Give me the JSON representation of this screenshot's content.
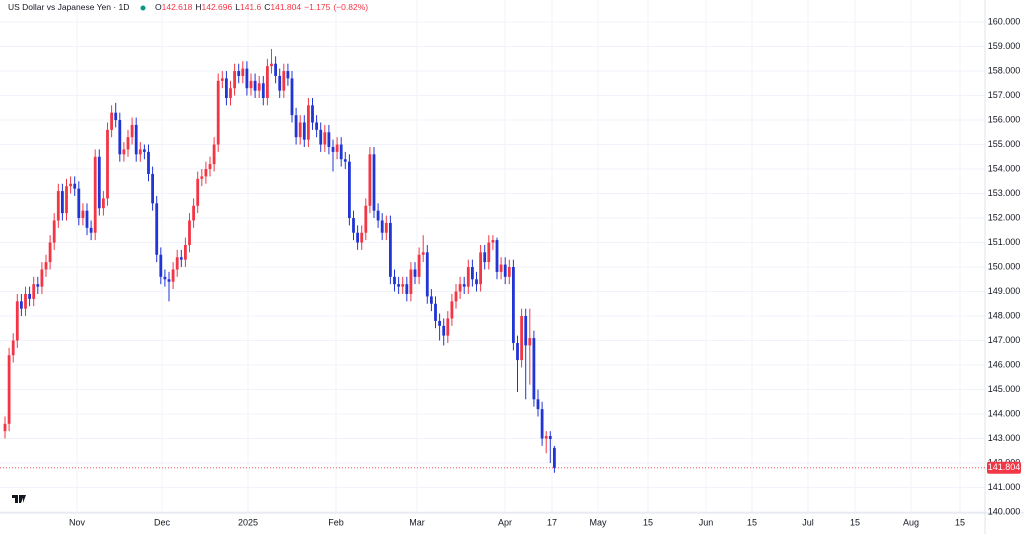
{
  "chart_data": {
    "type": "candlestick",
    "title": "US Dollar vs Japanese Yen · 1D",
    "ohlc_labels": [
      "O",
      "H",
      "L",
      "C"
    ],
    "change": {
      "value": -1.175,
      "label": "−1.175"
    },
    "change_pct": {
      "value": -0.82,
      "label": "(−0.82%)"
    },
    "up_color": "#f23645",
    "down_color": "#2135d6",
    "ylim": [
      140,
      160.9
    ],
    "yticks": [
      {
        "value": 140,
        "label": "140.000"
      },
      {
        "value": 141,
        "label": "141.000"
      },
      {
        "value": 142,
        "label": "142.000"
      },
      {
        "value": 143,
        "label": "143.000"
      },
      {
        "value": 144,
        "label": "144.000"
      },
      {
        "value": 145,
        "label": "145.000"
      },
      {
        "value": 146,
        "label": "146.000"
      },
      {
        "value": 147,
        "label": "147.000"
      },
      {
        "value": 148,
        "label": "148.000"
      },
      {
        "value": 149,
        "label": "149.000"
      },
      {
        "value": 150,
        "label": "150.000"
      },
      {
        "value": 151,
        "label": "151.000"
      },
      {
        "value": 152,
        "label": "152.000"
      },
      {
        "value": 153,
        "label": "153.000"
      },
      {
        "value": 154,
        "label": "154.000"
      },
      {
        "value": 155,
        "label": "155.000"
      },
      {
        "value": 156,
        "label": "156.000"
      },
      {
        "value": 157,
        "label": "157.000"
      },
      {
        "value": 158,
        "label": "158.000"
      },
      {
        "value": 159,
        "label": "159.000"
      },
      {
        "value": 160,
        "label": "160.000"
      }
    ],
    "xticks": [
      "Nov",
      "Dec",
      "2025",
      "Feb",
      "Mar",
      "Apr",
      "17",
      "May",
      "15",
      "Jun",
      "15",
      "Jul",
      "15",
      "Aug",
      "15"
    ],
    "grid": true,
    "ohlc": [
      [
        143.3,
        143.9,
        143.0,
        143.6
      ],
      [
        143.6,
        146.7,
        143.3,
        146.4
      ],
      [
        146.4,
        147.3,
        146.1,
        147.0
      ],
      [
        147.0,
        148.9,
        146.7,
        148.6
      ],
      [
        148.6,
        148.9,
        148.0,
        148.3
      ],
      [
        148.3,
        149.2,
        148.0,
        148.9
      ],
      [
        148.9,
        149.2,
        148.4,
        148.7
      ],
      [
        148.7,
        149.6,
        148.4,
        149.3
      ],
      [
        149.3,
        149.6,
        148.9,
        149.2
      ],
      [
        149.2,
        150.2,
        148.9,
        149.9
      ],
      [
        149.9,
        150.5,
        149.6,
        150.2
      ],
      [
        150.2,
        151.3,
        149.9,
        151.0
      ],
      [
        151.0,
        152.2,
        150.7,
        151.9
      ],
      [
        151.9,
        153.4,
        151.6,
        153.1
      ],
      [
        153.1,
        153.4,
        151.9,
        152.2
      ],
      [
        152.2,
        153.6,
        151.9,
        153.3
      ],
      [
        153.3,
        153.7,
        153.0,
        153.4
      ],
      [
        153.4,
        153.7,
        152.9,
        153.2
      ],
      [
        153.2,
        153.5,
        151.7,
        152.0
      ],
      [
        152.0,
        152.6,
        151.7,
        152.3
      ],
      [
        152.3,
        152.6,
        151.3,
        151.6
      ],
      [
        151.6,
        151.9,
        151.1,
        151.4
      ],
      [
        151.4,
        154.8,
        151.1,
        154.5
      ],
      [
        154.5,
        154.8,
        152.1,
        152.4
      ],
      [
        152.4,
        153.1,
        152.1,
        152.8
      ],
      [
        152.8,
        155.9,
        152.5,
        155.6
      ],
      [
        155.6,
        156.6,
        155.3,
        156.3
      ],
      [
        156.3,
        156.7,
        155.7,
        156.0
      ],
      [
        156.0,
        156.3,
        154.3,
        154.6
      ],
      [
        154.6,
        155.1,
        154.3,
        154.8
      ],
      [
        154.8,
        155.6,
        154.5,
        155.3
      ],
      [
        155.3,
        156.1,
        155.0,
        155.8
      ],
      [
        155.8,
        156.1,
        154.3,
        154.6
      ],
      [
        154.6,
        155.1,
        154.3,
        154.8
      ],
      [
        154.8,
        155.0,
        154.4,
        154.7
      ],
      [
        154.7,
        155.0,
        153.5,
        153.8
      ],
      [
        153.8,
        154.1,
        152.3,
        152.6
      ],
      [
        152.6,
        152.9,
        150.2,
        150.5
      ],
      [
        150.5,
        150.8,
        149.3,
        149.6
      ],
      [
        149.6,
        149.9,
        149.2,
        149.5
      ],
      [
        149.5,
        149.8,
        148.6,
        149.4
      ],
      [
        149.4,
        150.2,
        149.1,
        149.9
      ],
      [
        149.9,
        150.7,
        149.6,
        150.4
      ],
      [
        150.4,
        150.7,
        150.0,
        150.3
      ],
      [
        150.3,
        151.2,
        150.0,
        150.9
      ],
      [
        150.9,
        152.2,
        150.6,
        151.9
      ],
      [
        151.9,
        152.8,
        151.6,
        152.5
      ],
      [
        152.5,
        153.9,
        152.2,
        153.6
      ],
      [
        153.6,
        154.0,
        153.3,
        153.7
      ],
      [
        153.7,
        154.3,
        153.4,
        154.0
      ],
      [
        154.0,
        154.5,
        153.7,
        154.2
      ],
      [
        154.2,
        155.3,
        153.9,
        155.0
      ],
      [
        155.0,
        157.9,
        154.7,
        157.6
      ],
      [
        157.6,
        158.0,
        157.3,
        157.7
      ],
      [
        157.7,
        158.0,
        156.6,
        156.9
      ],
      [
        156.9,
        157.6,
        156.6,
        157.3
      ],
      [
        157.3,
        158.3,
        157.0,
        158.0
      ],
      [
        158.0,
        158.3,
        157.5,
        157.8
      ],
      [
        157.8,
        158.4,
        157.5,
        158.1
      ],
      [
        158.1,
        158.4,
        157.0,
        157.3
      ],
      [
        157.3,
        157.9,
        157.0,
        157.6
      ],
      [
        157.6,
        157.9,
        156.9,
        157.2
      ],
      [
        157.2,
        157.8,
        156.9,
        157.5
      ],
      [
        157.5,
        157.8,
        156.6,
        156.9
      ],
      [
        156.9,
        158.5,
        156.6,
        158.2
      ],
      [
        158.2,
        158.9,
        157.9,
        158.3
      ],
      [
        158.3,
        158.6,
        157.5,
        157.8
      ],
      [
        157.8,
        158.1,
        156.9,
        157.2
      ],
      [
        157.2,
        158.3,
        156.9,
        158.0
      ],
      [
        158.0,
        158.3,
        157.4,
        157.7
      ],
      [
        157.7,
        158.0,
        155.9,
        156.2
      ],
      [
        156.2,
        156.5,
        155.0,
        155.3
      ],
      [
        155.3,
        156.2,
        155.0,
        155.9
      ],
      [
        155.9,
        156.2,
        154.9,
        155.2
      ],
      [
        155.2,
        156.9,
        154.9,
        156.6
      ],
      [
        156.6,
        156.9,
        155.6,
        155.9
      ],
      [
        155.9,
        156.2,
        155.3,
        155.6
      ],
      [
        155.6,
        155.9,
        154.7,
        155.0
      ],
      [
        155.0,
        155.8,
        154.7,
        155.5
      ],
      [
        155.5,
        155.8,
        154.6,
        154.9
      ],
      [
        154.9,
        155.2,
        153.9,
        154.7
      ],
      [
        154.7,
        155.3,
        154.4,
        155.0
      ],
      [
        155.0,
        155.3,
        154.1,
        154.4
      ],
      [
        154.4,
        154.7,
        154.0,
        154.3
      ],
      [
        154.3,
        154.6,
        151.7,
        152.0
      ],
      [
        152.0,
        152.3,
        151.1,
        151.4
      ],
      [
        151.4,
        151.7,
        150.7,
        151.0
      ],
      [
        151.0,
        151.7,
        150.7,
        151.4
      ],
      [
        151.4,
        152.8,
        151.1,
        152.5
      ],
      [
        152.5,
        154.9,
        152.2,
        154.6
      ],
      [
        154.6,
        154.9,
        152.0,
        152.3
      ],
      [
        152.3,
        152.6,
        151.6,
        151.9
      ],
      [
        151.9,
        152.2,
        151.1,
        151.4
      ],
      [
        151.4,
        152.1,
        151.1,
        151.8
      ],
      [
        151.8,
        152.1,
        149.3,
        149.6
      ],
      [
        149.6,
        149.9,
        149.0,
        149.3
      ],
      [
        149.3,
        149.6,
        148.9,
        149.2
      ],
      [
        149.2,
        149.6,
        148.9,
        149.3
      ],
      [
        149.3,
        149.6,
        148.6,
        148.9
      ],
      [
        148.9,
        150.2,
        148.6,
        149.9
      ],
      [
        149.9,
        150.2,
        149.3,
        149.6
      ],
      [
        149.6,
        150.8,
        149.3,
        150.5
      ],
      [
        150.5,
        151.3,
        150.2,
        150.6
      ],
      [
        150.6,
        150.9,
        148.5,
        148.8
      ],
      [
        148.8,
        149.1,
        148.2,
        148.5
      ],
      [
        148.5,
        148.8,
        147.5,
        147.8
      ],
      [
        147.8,
        148.1,
        147.0,
        147.6
      ],
      [
        147.6,
        147.9,
        146.8,
        147.2
      ],
      [
        147.2,
        148.2,
        146.9,
        147.9
      ],
      [
        147.9,
        148.9,
        147.6,
        148.6
      ],
      [
        148.6,
        149.3,
        148.3,
        149.0
      ],
      [
        149.0,
        149.6,
        148.7,
        149.3
      ],
      [
        149.3,
        149.6,
        148.9,
        149.2
      ],
      [
        149.2,
        150.3,
        148.9,
        150.0
      ],
      [
        150.0,
        150.3,
        149.2,
        149.5
      ],
      [
        149.5,
        149.8,
        149.0,
        149.3
      ],
      [
        149.3,
        150.9,
        149.0,
        150.6
      ],
      [
        150.6,
        150.9,
        149.9,
        150.2
      ],
      [
        150.2,
        151.3,
        149.9,
        151.0
      ],
      [
        151.0,
        151.3,
        150.7,
        151.1
      ],
      [
        151.1,
        151.2,
        149.5,
        149.8
      ],
      [
        149.8,
        150.4,
        149.5,
        150.1
      ],
      [
        150.1,
        150.4,
        149.3,
        149.6
      ],
      [
        149.6,
        150.3,
        149.3,
        150.0
      ],
      [
        150.0,
        150.3,
        146.6,
        146.9
      ],
      [
        146.9,
        147.2,
        144.9,
        146.2
      ],
      [
        146.2,
        148.3,
        145.9,
        148.0
      ],
      [
        148.0,
        148.3,
        144.6,
        146.8
      ],
      [
        146.8,
        148.3,
        145.2,
        147.1
      ],
      [
        147.1,
        147.4,
        144.3,
        144.6
      ],
      [
        144.6,
        145.0,
        143.9,
        144.2
      ],
      [
        144.2,
        144.5,
        142.7,
        143.0
      ],
      [
        143.0,
        143.3,
        142.4,
        143.1
      ],
      [
        143.1,
        143.3,
        142.0,
        142.98
      ],
      [
        142.618,
        142.696,
        141.6,
        141.804
      ]
    ]
  }
}
